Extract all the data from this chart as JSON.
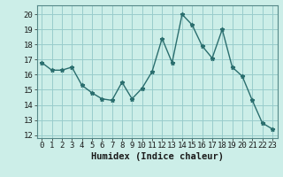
{
  "x": [
    0,
    1,
    2,
    3,
    4,
    5,
    6,
    7,
    8,
    9,
    10,
    11,
    12,
    13,
    14,
    15,
    16,
    17,
    18,
    19,
    20,
    21,
    22,
    23
  ],
  "y": [
    16.8,
    16.3,
    16.3,
    16.5,
    15.3,
    14.8,
    14.4,
    14.3,
    15.5,
    14.4,
    15.1,
    16.2,
    18.4,
    16.8,
    20.0,
    19.3,
    17.9,
    17.1,
    19.0,
    16.5,
    15.9,
    14.3,
    12.8,
    12.4
  ],
  "xlabel": "Humidex (Indice chaleur)",
  "xlim": [
    -0.5,
    23.5
  ],
  "ylim": [
    11.8,
    20.6
  ],
  "yticks": [
    12,
    13,
    14,
    15,
    16,
    17,
    18,
    19,
    20
  ],
  "xticks": [
    0,
    1,
    2,
    3,
    4,
    5,
    6,
    7,
    8,
    9,
    10,
    11,
    12,
    13,
    14,
    15,
    16,
    17,
    18,
    19,
    20,
    21,
    22,
    23
  ],
  "xtick_labels": [
    "0",
    "1",
    "2",
    "3",
    "4",
    "5",
    "6",
    "7",
    "8",
    "9",
    "10",
    "11",
    "12",
    "13",
    "14",
    "15",
    "16",
    "17",
    "18",
    "19",
    "20",
    "21",
    "22",
    "23"
  ],
  "line_color": "#2a6e6e",
  "marker": "*",
  "marker_size": 3.5,
  "bg_color": "#cceee8",
  "grid_color": "#99cccc",
  "fig_bg": "#cceee8",
  "tick_fontsize": 6.5,
  "xlabel_fontsize": 7.5
}
